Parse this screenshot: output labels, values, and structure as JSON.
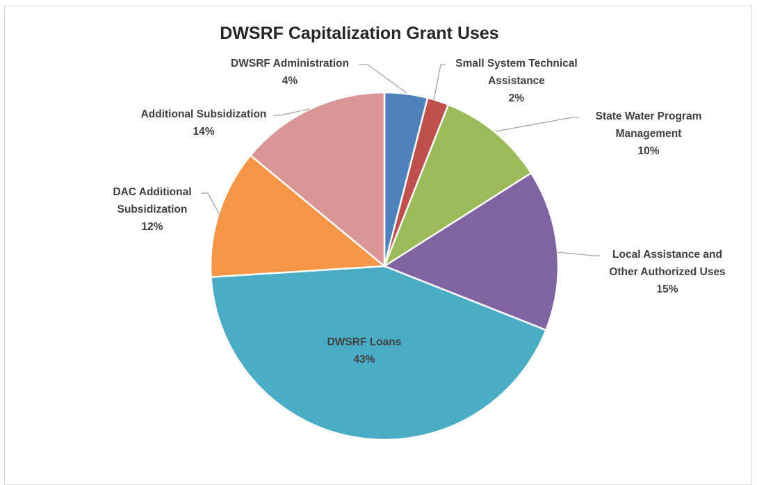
{
  "chart_data": {
    "type": "pie",
    "title": "DWSRF Capitalization Grant Uses",
    "start_angle_deg": 0,
    "direction": "clockwise",
    "slices": [
      {
        "label": "DWSRF Administration",
        "value": 4,
        "percent_label": "4%",
        "color": "#4f81bd"
      },
      {
        "label": "Small System Technical Assistance",
        "value": 2,
        "percent_label": "2%",
        "color": "#c0504d"
      },
      {
        "label": "State Water Program Management",
        "value": 10,
        "percent_label": "10%",
        "color": "#9bbb59"
      },
      {
        "label": "Local Assistance and Other Authorized Uses",
        "value": 15,
        "percent_label": "15%",
        "color": "#8064a2"
      },
      {
        "label": "DWSRF Loans",
        "value": 43,
        "percent_label": "43%",
        "color": "#4bacc6"
      },
      {
        "label": "DAC Additional Subsidization",
        "value": 12,
        "percent_label": "12%",
        "color": "#f79646"
      },
      {
        "label": "Additional Subsidization",
        "value": 14,
        "percent_label": "14%",
        "color": "#d99694"
      }
    ]
  }
}
